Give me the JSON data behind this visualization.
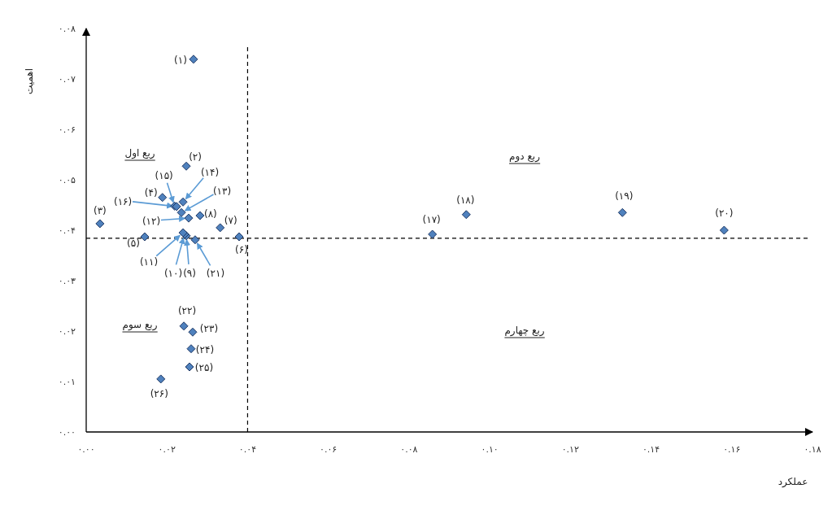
{
  "chart_data": {
    "type": "scatter",
    "xlabel": "عملکرد",
    "ylabel": "اهمیت",
    "x": [
      0.0266,
      0.0248,
      0.0034,
      0.0189,
      0.0145,
      0.0379,
      0.0332,
      0.0282,
      0.0248,
      0.0244,
      0.024,
      0.0254,
      0.0236,
      0.024,
      0.0219,
      0.0224,
      0.0858,
      0.0942,
      0.1329,
      0.1581,
      0.027,
      0.0242,
      0.0264,
      0.026,
      0.0256,
      0.0185
    ],
    "series": [
      {
        "color": "#4f81bd",
        "values": [
          0.0739,
          0.0527,
          0.0413,
          0.0465,
          0.0387,
          0.0387,
          0.0405,
          0.0429,
          0.0389,
          0.0392,
          0.0395,
          0.0424,
          0.0435,
          0.0456,
          0.0448,
          0.0447,
          0.0392,
          0.0431,
          0.0435,
          0.04,
          0.0381,
          0.021,
          0.0198,
          0.0165,
          0.0129,
          0.0105
        ]
      }
    ],
    "marker": "diamond",
    "grid": false,
    "xlim": [
      0,
      0.18
    ],
    "ylim": [
      0,
      0.08
    ],
    "xticks": [
      {
        "value": 0,
        "label": "۰.۰۰"
      },
      {
        "value": 0.02,
        "label": "۰.۰۲"
      },
      {
        "value": 0.04,
        "label": "۰.۰۴"
      },
      {
        "value": 0.06,
        "label": "۰.۰۶"
      },
      {
        "value": 0.08,
        "label": "۰.۰۸"
      },
      {
        "value": 0.1,
        "label": "۰.۱۰"
      },
      {
        "value": 0.12,
        "label": "۰.۱۲"
      },
      {
        "value": 0.14,
        "label": "۰.۱۴"
      },
      {
        "value": 0.16,
        "label": "۰.۱۶"
      },
      {
        "value": 0.18,
        "label": "۰.۱۸"
      }
    ],
    "yticks": [
      {
        "value": 0,
        "label": "۰.۰۰"
      },
      {
        "value": 0.01,
        "label": "۰.۰۱"
      },
      {
        "value": 0.02,
        "label": "۰.۰۲"
      },
      {
        "value": 0.03,
        "label": "۰.۰۳"
      },
      {
        "value": 0.04,
        "label": "۰.۰۴"
      },
      {
        "value": 0.05,
        "label": "۰.۰۵"
      },
      {
        "value": 0.06,
        "label": "۰.۰۶"
      },
      {
        "value": 0.07,
        "label": "۰.۰۷"
      },
      {
        "value": 0.08,
        "label": "۰.۰۸"
      }
    ],
    "ref_lines": [
      {
        "axis": "x",
        "value": 0.04,
        "line_style": "dashed",
        "color": "#000000"
      },
      {
        "axis": "y",
        "value": 0.0384,
        "line_style": "dashed",
        "color": "#000000"
      }
    ],
    "annotations": [
      {
        "text": "(۱)",
        "x": 0.0266,
        "y": 0.0739
      },
      {
        "text": "(۲)",
        "x": 0.0248,
        "y": 0.0527
      },
      {
        "text": "(۳)",
        "x": 0.0034,
        "y": 0.0413
      },
      {
        "text": "(۴)",
        "x": 0.0189,
        "y": 0.0465
      },
      {
        "text": "(۵)",
        "x": 0.0145,
        "y": 0.0387
      },
      {
        "text": "(۶)",
        "x": 0.0379,
        "y": 0.0387
      },
      {
        "text": "(۷)",
        "x": 0.0332,
        "y": 0.0405
      },
      {
        "text": "(۸)",
        "x": 0.0282,
        "y": 0.0429
      },
      {
        "text": "(۹)",
        "x": 0.0248,
        "y": 0.0389
      },
      {
        "text": "(۱۰)",
        "x": 0.0244,
        "y": 0.0392
      },
      {
        "text": "(۱۱)",
        "x": 0.024,
        "y": 0.0395
      },
      {
        "text": "(۱۲)",
        "x": 0.0254,
        "y": 0.0424
      },
      {
        "text": "(۱۳)",
        "x": 0.0236,
        "y": 0.0435
      },
      {
        "text": "(۱۴)",
        "x": 0.024,
        "y": 0.0456
      },
      {
        "text": "(۱۵)",
        "x": 0.0219,
        "y": 0.0448
      },
      {
        "text": "(۱۶)",
        "x": 0.0224,
        "y": 0.0447
      },
      {
        "text": "(۱۷)",
        "x": 0.0858,
        "y": 0.0392
      },
      {
        "text": "(۱۸)",
        "x": 0.0942,
        "y": 0.0431
      },
      {
        "text": "(۱۹)",
        "x": 0.1329,
        "y": 0.0435
      },
      {
        "text": "(۲۰)",
        "x": 0.1581,
        "y": 0.04
      },
      {
        "text": "(۲۱)",
        "x": 0.027,
        "y": 0.0381
      },
      {
        "text": "(۲۲)",
        "x": 0.0242,
        "y": 0.021
      },
      {
        "text": "(۲۳)",
        "x": 0.0264,
        "y": 0.0198
      },
      {
        "text": "(۲۴)",
        "x": 0.026,
        "y": 0.0165
      },
      {
        "text": "(۲۵)",
        "x": 0.0256,
        "y": 0.0129
      },
      {
        "text": "(۲۶)",
        "x": 0.0185,
        "y": 0.0105
      },
      "ربع اول",
      "ربع دوم",
      "ربع سوم",
      "ربع چهارم"
    ]
  }
}
